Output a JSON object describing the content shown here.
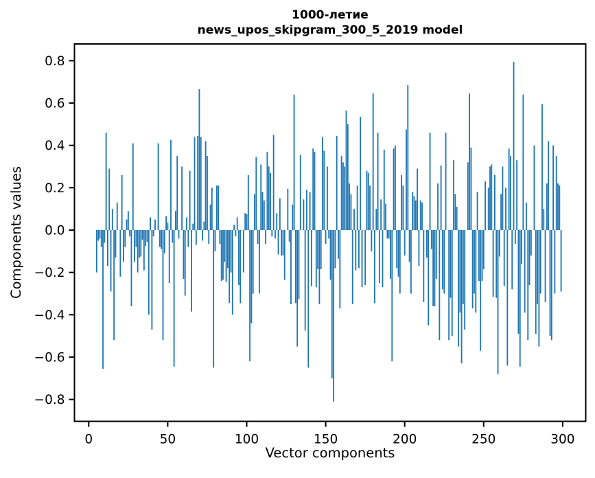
{
  "figure": {
    "background": "#ffffff"
  },
  "chart_data": {
    "type": "bar",
    "title_line1": "1000-летие",
    "title_line2": "news_upos_skipgram_300_5_2019 model",
    "xlabel": "Vector components",
    "ylabel": "Components values",
    "legend": null,
    "grid": false,
    "bar_color": "#1f77b4",
    "frame_color": "#000000",
    "n_components": 300,
    "x_ticks": [
      0,
      50,
      100,
      150,
      200,
      250,
      300
    ],
    "y_ticks": [
      0.8,
      0.6,
      0.4,
      0.2,
      0.0,
      -0.2,
      -0.4,
      -0.6,
      -0.8
    ],
    "xlim": [
      -9,
      309
    ],
    "ylim": [
      -0.9,
      0.88
    ],
    "values": [
      0,
      0,
      0,
      0,
      0,
      -0.2,
      -0.05,
      -0.04,
      -0.08,
      -0.655,
      -0.06,
      0.46,
      -0.17,
      0.29,
      -0.29,
      0.1,
      -0.52,
      -0.13,
      0.13,
      0,
      -0.22,
      0.26,
      -0.15,
      -0.08,
      0.05,
      0.09,
      -0.03,
      -0.36,
      0.41,
      -0.15,
      -0.08,
      -0.2,
      -0.13,
      -0.125,
      -0.045,
      -0.19,
      -0.075,
      -0.055,
      -0.4,
      0.06,
      -0.47,
      -0.03,
      0.05,
      0,
      0.41,
      -0.08,
      -0.09,
      -0.52,
      -0.11,
      0.065,
      0.035,
      -0.25,
      0.425,
      -0.06,
      -0.645,
      0.09,
      0.35,
      -0.04,
      0,
      0.3,
      -0.23,
      -0.31,
      0.06,
      -0.08,
      0.28,
      -0.385,
      0.03,
      0.44,
      -0.07,
      0.445,
      0.665,
      0.44,
      -0.05,
      0.04,
      0.42,
      0.35,
      -0.065,
      0.12,
      0.2,
      -0.65,
      -0.1,
      0.21,
      0.21,
      -0.065,
      -0.24,
      -0.235,
      -0.15,
      -0.245,
      -0.18,
      -0.345,
      -0.2,
      -0.4,
      0.025,
      -0.03,
      0.06,
      -0.26,
      -0.345,
      0,
      -0.2,
      0.08,
      0.075,
      0.26,
      -0.62,
      -0.44,
      -0.3,
      0.17,
      0.345,
      -0.065,
      -0.3,
      0.31,
      0.18,
      0.14,
      -0.065,
      0.37,
      0.3,
      0.27,
      -0.03,
      0.45,
      -0.04,
      0.08,
      -0.115,
      0.15,
      -0.12,
      -0.12,
      -0.235,
      0,
      0.195,
      -0.055,
      -0.35,
      0.12,
      0.64,
      -0.345,
      -0.55,
      -0.325,
      0.355,
      0,
      0.145,
      -0.475,
      0.19,
      -0.65,
      0.18,
      -0.265,
      0.385,
      0.37,
      -0.27,
      -0.185,
      -0.35,
      -0.185,
      0.44,
      0.375,
      -0.065,
      0.3,
      -0.04,
      -0.235,
      -0.7,
      -0.81,
      -0.18,
      0.445,
      -0.135,
      -0.37,
      0.35,
      0.32,
      0.3,
      0.565,
      0.5,
      0.22,
      0.17,
      -0.35,
      0.1,
      -0.19,
      0.21,
      -0.18,
      0.535,
      -0.27,
      0,
      -0.26,
      0.28,
      0.27,
      0.21,
      -0.1,
      0.645,
      -0.345,
      0.1,
      0.46,
      -0.25,
      0.145,
      -0.27,
      0.38,
      0.125,
      -0.04,
      -0.04,
      -0.23,
      -0.62,
      0.385,
      0.4,
      -0.18,
      -0.22,
      -0.3,
      0.26,
      0.21,
      -0.12,
      0.475,
      0.685,
      -0.15,
      -0.3,
      0.18,
      0.16,
      0.14,
      0.29,
      -0.17,
      0.14,
      0.13,
      -0.34,
      0,
      -0.13,
      -0.45,
      0.46,
      -0.09,
      -0.36,
      -0.36,
      -0.23,
      0.22,
      -0.52,
      0.305,
      -0.28,
      -0.3,
      0.46,
      0,
      -0.52,
      -0.32,
      -0.5,
      0.33,
      0.17,
      0.11,
      -0.55,
      -0.39,
      -0.63,
      -0.35,
      -0.47,
      0,
      0.32,
      0.645,
      0.39,
      -0.37,
      -0.3,
      -0.39,
      0.18,
      -0.24,
      -0.57,
      -0.24,
      -0.185,
      0.23,
      0,
      0.2,
      0.3,
      0.31,
      -0.315,
      0.26,
      -0.32,
      -0.68,
      -0.125,
      0.17,
      0.3,
      -0.265,
      0.2,
      -0.64,
      0.385,
      0.35,
      -0.28,
      0.795,
      -0.065,
      0.33,
      -0.49,
      -0.645,
      -0.16,
      0.64,
      -0.39,
      0.13,
      -0.52,
      -0.26,
      -0.12,
      0,
      0.4,
      -0.49,
      -0.35,
      -0.55,
      -0.3,
      0.595,
      0.1,
      -0.34,
      0.22,
      0.42,
      -0.5,
      -0.52,
      0.4,
      -0.3,
      0.35,
      0.22,
      0.21,
      -0.29
    ]
  }
}
